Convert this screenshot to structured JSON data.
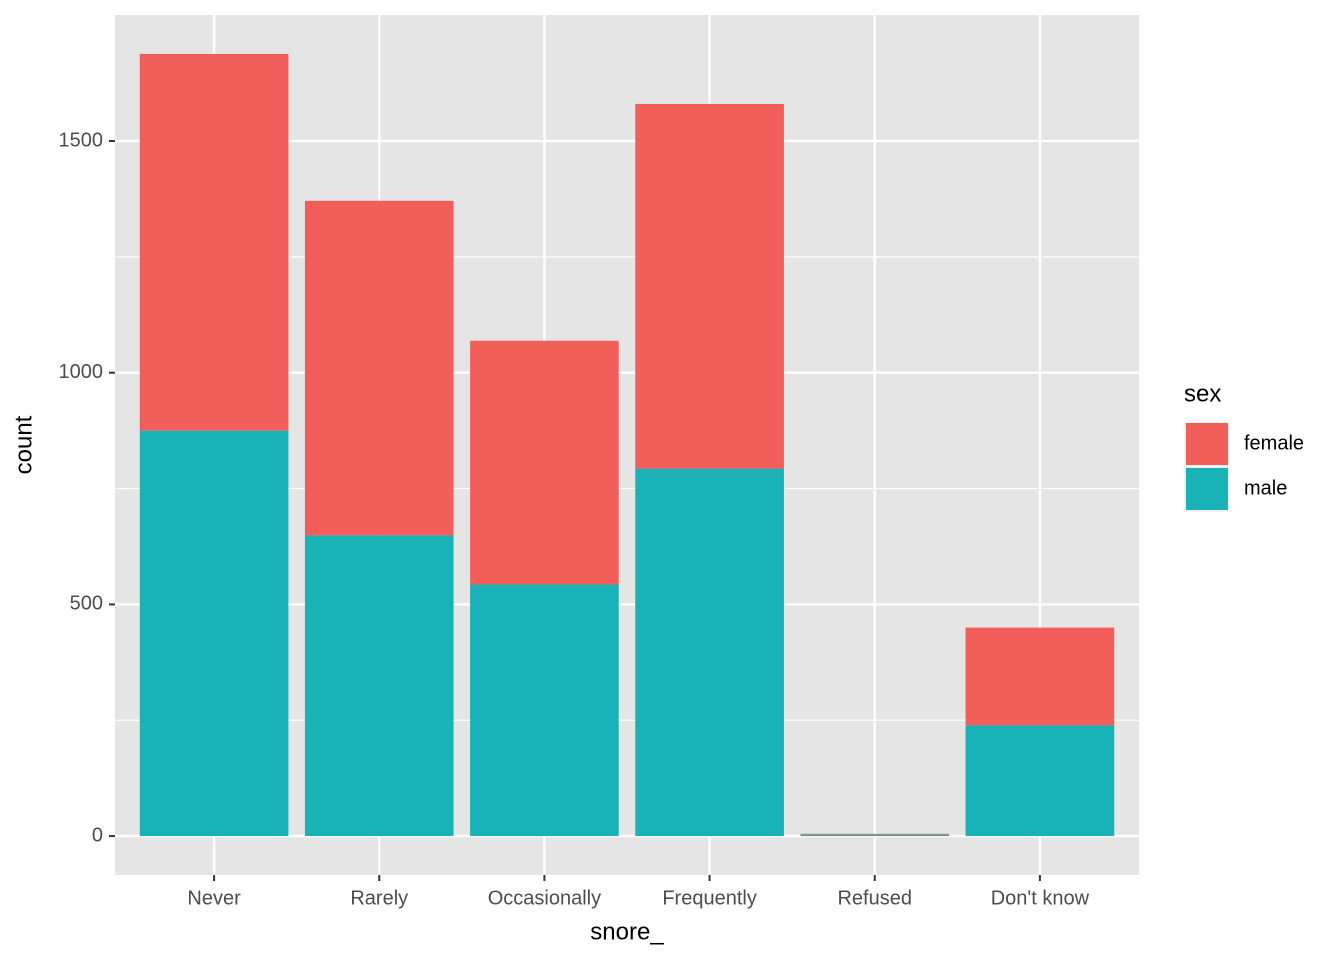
{
  "chart_data": {
    "type": "stacked_bar",
    "x_label": "snore_",
    "y_label": "count",
    "categories": [
      "Never",
      "Rarely",
      "Occasionally",
      "Frequently",
      "Refused",
      "Don't know"
    ],
    "series": [
      {
        "name": "female",
        "color": "#f25f5a",
        "values": [
          813,
          722,
          526,
          787,
          2,
          211
        ]
      },
      {
        "name": "male",
        "color": "#19b3b7",
        "values": [
          875,
          649,
          543,
          793,
          3,
          239
        ]
      }
    ],
    "legend_title": "sex",
    "ylim": [
      -84,
      1772
    ],
    "yticks": [
      0,
      500,
      1000,
      1500
    ],
    "minor_yticks": [
      250,
      750,
      1250
    ],
    "grid": true,
    "legend": "right"
  }
}
